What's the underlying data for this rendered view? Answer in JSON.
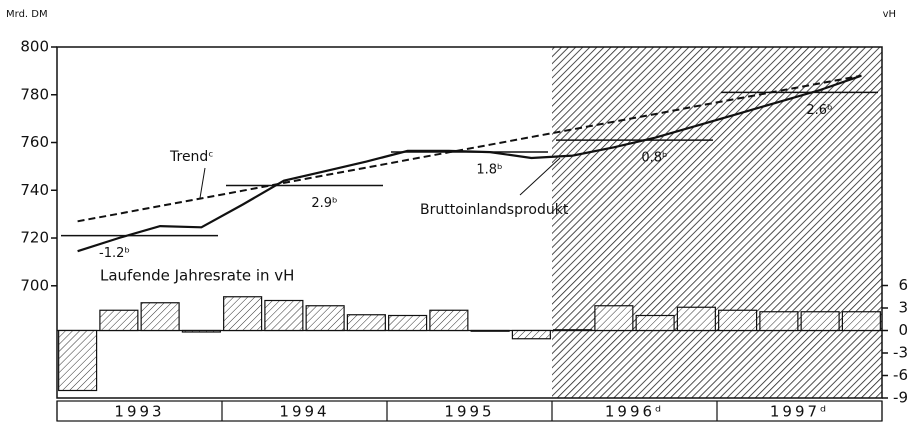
{
  "chart_data": {
    "type": "combo",
    "y_label": "Mrd. DM",
    "y2_label": "vH",
    "x": [
      1993.125,
      1993.375,
      1993.625,
      1993.875,
      1994.125,
      1994.375,
      1994.625,
      1994.875,
      1995.125,
      1995.375,
      1995.625,
      1995.875,
      1996.125,
      1996.375,
      1996.625,
      1996.875,
      1997.125,
      1997.375,
      1997.625,
      1997.875
    ],
    "xlim": [
      1993,
      1998
    ],
    "xticks": [
      1993,
      1994,
      1995,
      1996,
      1997,
      1998
    ],
    "year_labels": [
      "1993",
      "1994",
      "1995",
      "1996ᵈ",
      "1997ᵈ"
    ],
    "ylim": [
      653,
      800
    ],
    "yticks": [
      700,
      720,
      740,
      760,
      780,
      800
    ],
    "y2lim": [
      -9,
      37.8
    ],
    "y2ticks": [
      -9,
      -6,
      -3,
      0,
      3,
      6
    ],
    "shaded_from": 1996,
    "series": [
      {
        "name": "Bruttoinlandsprodukt",
        "type": "line",
        "color": "#111111",
        "values": [
          714.5,
          720,
          725,
          724.5,
          734,
          744,
          748,
          752,
          756.5,
          756.5,
          756,
          753.5,
          754.5,
          758,
          762,
          767,
          772,
          777,
          782,
          788
        ]
      },
      {
        "name": "Trendᶜ",
        "type": "line",
        "dash": true,
        "color": "#111111",
        "values": [
          727,
          730.2,
          733.4,
          736.6,
          739.8,
          743.1,
          746.3,
          749.5,
          752.7,
          755.9,
          759.1,
          762.3,
          765.5,
          768.7,
          771.9,
          775.2,
          778.4,
          781.6,
          784.8,
          788
        ]
      },
      {
        "name": "Laufende Jahresrate in vH",
        "type": "bar",
        "axis": "y2",
        "color": "#111111",
        "values": [
          -8,
          2.7,
          3.7,
          -0.2,
          4.5,
          4,
          3.3,
          2.1,
          2,
          2.7,
          -0.1,
          -1.1,
          0.1,
          3.3,
          2,
          3.1,
          2.7,
          2.5,
          2.5,
          2.5
        ]
      }
    ],
    "annual_average": [
      721,
      742,
      756,
      761,
      781
    ],
    "annual_growth": {
      "values": [
        -1.2,
        2.9,
        1.8,
        0.8,
        2.6
      ],
      "value_labels": [
        "-1.2ᵇ",
        "2.9ᵇ",
        "1.8ᵇ",
        "0.8ᵇ",
        "2.6ᵇ"
      ]
    }
  }
}
